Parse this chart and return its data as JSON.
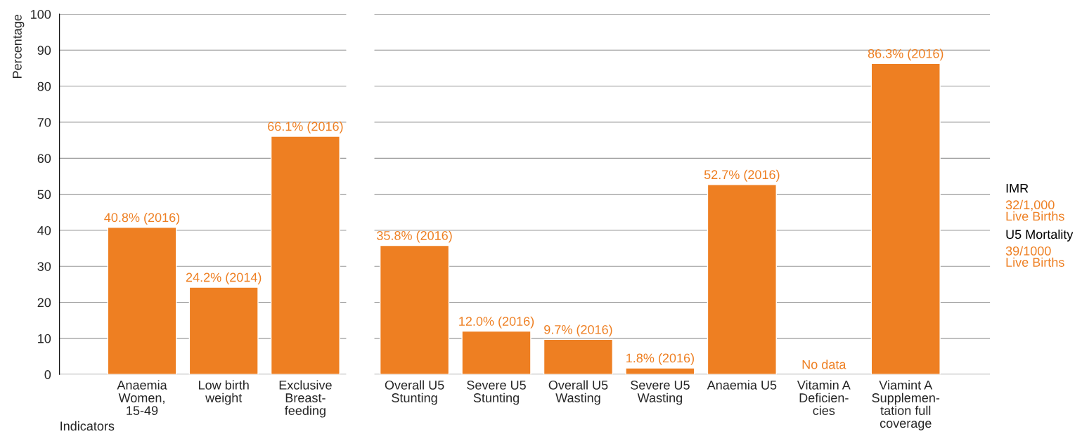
{
  "chart_data": [
    {
      "type": "bar",
      "ylabel": "Percentage",
      "xlabel": "Indicators",
      "categories": [
        "Anaemia\nWomen,\n15-49",
        "Low birth\nweight",
        "Exclusive\nBreast-\nfeeding"
      ],
      "values": [
        40.8,
        24.2,
        66.1
      ],
      "color": "#ee7f22",
      "value_labels": [
        "40.8% (2016)",
        "24.2% (2014)",
        "66.1% (2016)"
      ],
      "ylim": [
        0,
        100
      ],
      "yticks": [
        0,
        10,
        20,
        30,
        40,
        50,
        60,
        70,
        80,
        90,
        100
      ],
      "grid": "y"
    },
    {
      "type": "bar",
      "categories": [
        "Overall U5\nStunting",
        "Severe U5\nStunting",
        "Overall U5\nWasting",
        "Severe U5\nWasting",
        "Anaemia U5",
        "Vitamin A\nDeficien-\ncies",
        "Viamint A\nSupplemen-\ntation full\ncoverage"
      ],
      "values": [
        35.8,
        12.0,
        9.7,
        1.8,
        52.7,
        null,
        86.3
      ],
      "color": "#ee7f22",
      "value_labels": [
        "35.8% (2016)",
        "12.0% (2016)",
        "9.7% (2016)",
        "1.8% (2016)",
        "52.7% (2016)",
        "No data",
        "86.3% (2016)"
      ],
      "ylim": [
        0,
        100
      ],
      "yticks": [
        0,
        10,
        20,
        30,
        40,
        50,
        60,
        70,
        80,
        90,
        100
      ],
      "grid": "y",
      "tick_labels": "x",
      "annotations": [
        "IMR",
        "32/1,000\nLive Births",
        "U5 Mortality",
        "39/1000\nLive Births"
      ]
    }
  ]
}
